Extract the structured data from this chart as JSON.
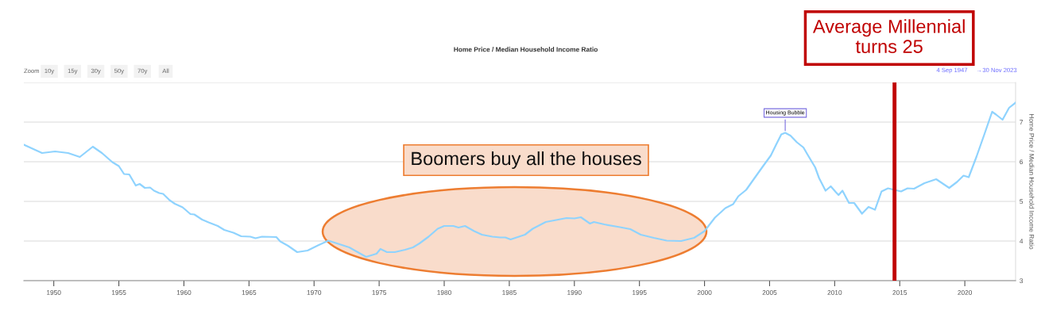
{
  "chart_data": {
    "type": "line",
    "title": "Home Price / Median Household Income Ratio",
    "ylabel": "Home Price / Median Household Income Ratio",
    "x": [
      1947.7,
      1949.1,
      1950.1,
      1951.1,
      1952.0,
      1953.0,
      1953.7,
      1954.5,
      1955.0,
      1955.4,
      1955.8,
      1956.3,
      1956.6,
      1957.0,
      1957.4,
      1957.7,
      1958.1,
      1958.4,
      1958.9,
      1959.3,
      1959.9,
      1960.5,
      1960.8,
      1961.4,
      1961.9,
      1962.6,
      1963.1,
      1963.8,
      1964.4,
      1965.1,
      1965.5,
      1966.0,
      1967.1,
      1967.4,
      1968.0,
      1968.7,
      1969.5,
      1970.3,
      1971.1,
      1972.7,
      1974.0,
      1974.8,
      1975.1,
      1975.6,
      1976.2,
      1977.0,
      1977.6,
      1978.1,
      1978.8,
      1979.5,
      1980.0,
      1980.7,
      1981.1,
      1981.6,
      1982.3,
      1982.9,
      1983.7,
      1984.3,
      1984.7,
      1985.1,
      1986.2,
      1986.8,
      1987.8,
      1988.6,
      1989.4,
      1990.0,
      1990.5,
      1991.2,
      1991.5,
      1992.3,
      1993.5,
      1994.3,
      1995.1,
      1996.1,
      1997.1,
      1998.2,
      1999.2,
      2000.0,
      2000.8,
      2001.6,
      2002.2,
      2002.6,
      2003.2,
      2004.0,
      2004.5,
      2005.1,
      2005.5,
      2005.9,
      2006.2,
      2006.6,
      2007.1,
      2007.6,
      2007.9,
      2008.5,
      2008.8,
      2009.3,
      2009.7,
      2010.1,
      2010.3,
      2010.6,
      2011.1,
      2011.5,
      2012.1,
      2012.6,
      2013.1,
      2013.6,
      2014.1,
      2015.1,
      2015.6,
      2016.1,
      2016.9,
      2017.8,
      2018.8,
      2019.4,
      2019.9,
      2020.3,
      2020.9,
      2021.5,
      2022.1,
      2022.4,
      2022.9,
      2023.4,
      2023.9
    ],
    "series": [
      {
        "color": "#8fd3fe",
        "values": [
          6.43,
          6.22,
          6.26,
          6.22,
          6.12,
          6.38,
          6.22,
          5.99,
          5.89,
          5.69,
          5.68,
          5.4,
          5.44,
          5.34,
          5.35,
          5.27,
          5.21,
          5.19,
          5.03,
          4.94,
          4.85,
          4.68,
          4.67,
          4.54,
          4.47,
          4.38,
          4.28,
          4.21,
          4.12,
          4.11,
          4.07,
          4.11,
          4.1,
          3.99,
          3.88,
          3.72,
          3.76,
          3.89,
          4.01,
          3.84,
          3.6,
          3.68,
          3.8,
          3.72,
          3.72,
          3.78,
          3.84,
          3.94,
          4.11,
          4.31,
          4.38,
          4.38,
          4.34,
          4.38,
          4.25,
          4.16,
          4.11,
          4.09,
          4.09,
          4.04,
          4.16,
          4.31,
          4.48,
          4.53,
          4.58,
          4.57,
          4.6,
          4.44,
          4.48,
          4.42,
          4.35,
          4.3,
          4.16,
          4.08,
          4.01,
          4.0,
          4.08,
          4.25,
          4.59,
          4.83,
          4.93,
          5.13,
          5.29,
          5.66,
          5.89,
          6.16,
          6.43,
          6.69,
          6.73,
          6.66,
          6.49,
          6.36,
          6.19,
          5.86,
          5.59,
          5.27,
          5.38,
          5.23,
          5.16,
          5.27,
          4.96,
          4.96,
          4.69,
          4.86,
          4.79,
          5.25,
          5.33,
          5.25,
          5.33,
          5.32,
          5.46,
          5.56,
          5.34,
          5.49,
          5.65,
          5.61,
          6.13,
          6.69,
          7.26,
          7.19,
          7.06,
          7.36,
          7.49
        ]
      }
    ],
    "xlim": [
      1947.7,
      2023.9
    ],
    "xticks": [
      1950,
      1955,
      1960,
      1965,
      1970,
      1975,
      1980,
      1985,
      1990,
      1995,
      2000,
      2005,
      2010,
      2015,
      2020
    ],
    "ylim": [
      3,
      8
    ],
    "yticks": [
      3,
      4,
      5,
      6,
      7,
      {
        "value": 8,
        "label": null
      }
    ],
    "grid": "y",
    "marker": "none",
    "line_style": "solid",
    "ref_lines": [
      {
        "axis": "x",
        "value": 2014.6,
        "label": "Average Millennial turns 25",
        "color": "#c00000"
      }
    ],
    "annotations": [
      {
        "text": "Housing Bubble",
        "x": 2006.2,
        "y": 6.73
      },
      "Boomers buy all the houses",
      "Zoom",
      "10y",
      "15y",
      "30y",
      "50y",
      "70y",
      "All",
      "4 Sep 1947",
      "→",
      "30 Nov 2023"
    ]
  }
}
